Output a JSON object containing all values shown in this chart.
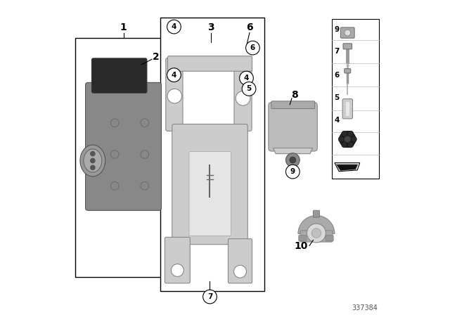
{
  "bg_color": "#ffffff",
  "fig_width": 6.4,
  "fig_height": 4.48,
  "dpi": 100,
  "part_number": "337384"
}
